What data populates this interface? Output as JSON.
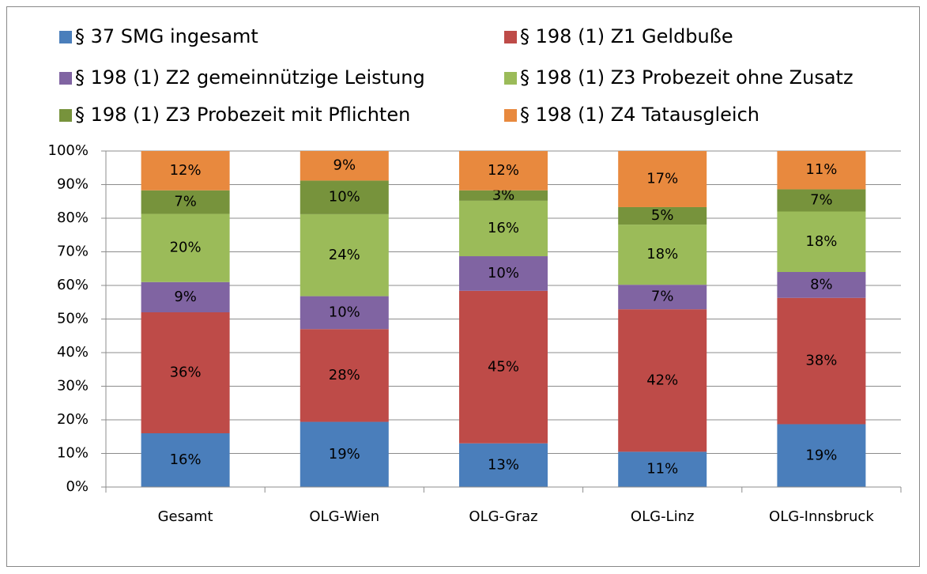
{
  "chart_data": {
    "type": "stacked_bar",
    "categories": [
      "Gesamt",
      "OLG-Wien",
      "OLG-Graz",
      "OLG-Linz",
      "OLG-Innsbruck"
    ],
    "series": [
      {
        "name": "§ 37 SMG ingesamt",
        "color": "#4a7ebb",
        "values": [
          16,
          19.4,
          13,
          10.5,
          18.7
        ],
        "value_labels": [
          "16%",
          "19%",
          "13%",
          "11%",
          "19%"
        ]
      },
      {
        "name": "§ 198 (1) Z1 Geldbuße",
        "color": "#be4b48",
        "values": [
          36,
          27.6,
          45.4,
          42.4,
          37.6
        ],
        "value_labels": [
          "36%",
          "28%",
          "45%",
          "42%",
          "38%"
        ]
      },
      {
        "name": "§ 198 (1) Z2 gemeinnützige Leistung",
        "color": "#8064a2",
        "values": [
          9,
          9.8,
          10.3,
          7.3,
          7.7
        ],
        "value_labels": [
          "9%",
          "10%",
          "10%",
          "7%",
          "8%"
        ]
      },
      {
        "name": "§ 198 (1) Z3 Probezeit ohne Zusatz",
        "color": "#9bbb59",
        "values": [
          20.3,
          24.4,
          16.5,
          17.9,
          18
        ],
        "value_labels": [
          "20%",
          "24%",
          "16%",
          "18%",
          "18%"
        ]
      },
      {
        "name": "§ 198 (1) Z3 Probezeit mit Pflichten",
        "color": "#77933c",
        "values": [
          7,
          10,
          3.1,
          5.2,
          6.6
        ],
        "value_labels": [
          "7%",
          "10%",
          "3%",
          "5%",
          "7%"
        ]
      },
      {
        "name": "§ 198 (1) Z4 Tatausgleich",
        "color": "#e8893e",
        "values": [
          11.7,
          8.8,
          11.7,
          16.7,
          11.4
        ],
        "value_labels": [
          "12%",
          "9%",
          "12%",
          "17%",
          "11%"
        ]
      }
    ],
    "ylim": [
      0,
      100
    ],
    "yticks": [
      {
        "value": 0,
        "label": "0%"
      },
      {
        "value": 10,
        "label": "10%"
      },
      {
        "value": 20,
        "label": "20%"
      },
      {
        "value": 30,
        "label": "30%"
      },
      {
        "value": 40,
        "label": "40%"
      },
      {
        "value": 50,
        "label": "50%"
      },
      {
        "value": 60,
        "label": "60%"
      },
      {
        "value": 70,
        "label": "70%"
      },
      {
        "value": 80,
        "label": "80%"
      },
      {
        "value": 90,
        "label": "90%"
      },
      {
        "value": 100,
        "label": "100%"
      }
    ],
    "grid": true
  }
}
